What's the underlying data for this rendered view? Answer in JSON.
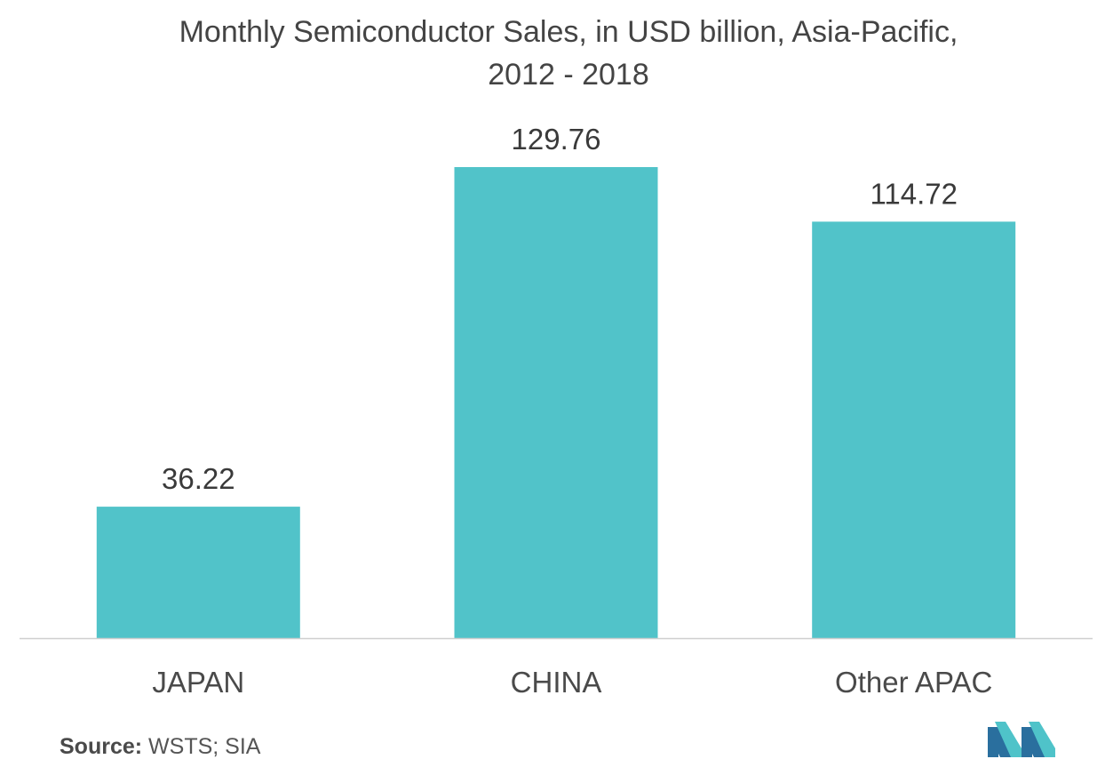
{
  "title": {
    "line1": "Monthly Semiconductor Sales, in USD billion, Asia-Pacific,",
    "line2": "2012 - 2018"
  },
  "source": {
    "label": "Source:",
    "text": "WSTS; SIA"
  },
  "logo": {
    "icon": "mordor-intelligence-logo-icon",
    "colors": [
      "#2a6f9e",
      "#4fc3c9"
    ]
  },
  "chart_data": {
    "type": "bar",
    "categories": [
      "JAPAN",
      "CHINA",
      "Other APAC"
    ],
    "values": [
      36.22,
      129.76,
      114.72
    ],
    "value_labels": [
      "36.22",
      "129.76",
      "114.72"
    ],
    "title": "Monthly Semiconductor Sales, in USD billion, Asia-Pacific, 2012 - 2018",
    "xlabel": "",
    "ylabel": "",
    "ylim": [
      0,
      129.76
    ],
    "grid": false,
    "legend": "none",
    "bar_color": "#51c3c9",
    "baseline_color": "#cfcfcf"
  }
}
